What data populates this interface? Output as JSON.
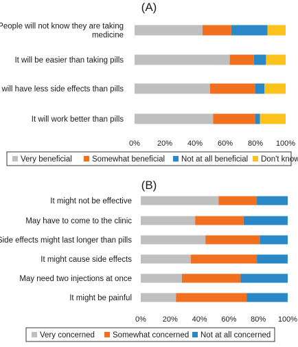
{
  "chart_data": [
    {
      "type": "bar",
      "orientation": "horizontal",
      "stacked": true,
      "title": "(A)",
      "categories": [
        [
          "People will not know they are taking",
          "medicine"
        ],
        [
          "It will be easier than taking pills"
        ],
        [
          "It will have less side effects than pills"
        ],
        [
          "It will work better than pills"
        ]
      ],
      "series": [
        {
          "name": "Very beneficial",
          "color": "#bfbfbf",
          "values": [
            45,
            63,
            50,
            52
          ]
        },
        {
          "name": "Somewhat beneficial",
          "color": "#f07020",
          "values": [
            19,
            16,
            30,
            28
          ]
        },
        {
          "name": "Not at all beneficial",
          "color": "#2a88c6",
          "values": [
            24,
            8,
            6,
            3
          ]
        },
        {
          "name": "Don't know",
          "color": "#fcc21c",
          "values": [
            12,
            13,
            14,
            17
          ]
        }
      ],
      "xticks": [
        "0%",
        "20%",
        "40%",
        "60%",
        "80%",
        "100%"
      ],
      "xlim": [
        0,
        100
      ],
      "legend_position": "bottom"
    },
    {
      "type": "bar",
      "orientation": "horizontal",
      "stacked": true,
      "title": "(B)",
      "categories": [
        [
          "It might not be effective"
        ],
        [
          "May have to come to the clinic"
        ],
        [
          "Side effects might last longer than pills"
        ],
        [
          "It might cause side effects"
        ],
        [
          "May need two injections at once"
        ],
        [
          "It might be painful"
        ]
      ],
      "series": [
        {
          "name": "Very concerned",
          "color": "#bfbfbf",
          "values": [
            53,
            37,
            44,
            34,
            28,
            24
          ]
        },
        {
          "name": "Somewhat concerned",
          "color": "#f07020",
          "values": [
            26,
            33,
            37,
            45,
            40,
            48
          ]
        },
        {
          "name": "Not at all concerned",
          "color": "#2a88c6",
          "values": [
            21,
            30,
            19,
            21,
            32,
            28
          ]
        }
      ],
      "xticks": [
        "0%",
        "20%",
        "40%",
        "60%",
        "80%",
        "100%"
      ],
      "xlim": [
        0,
        100
      ],
      "legend_position": "bottom"
    }
  ]
}
